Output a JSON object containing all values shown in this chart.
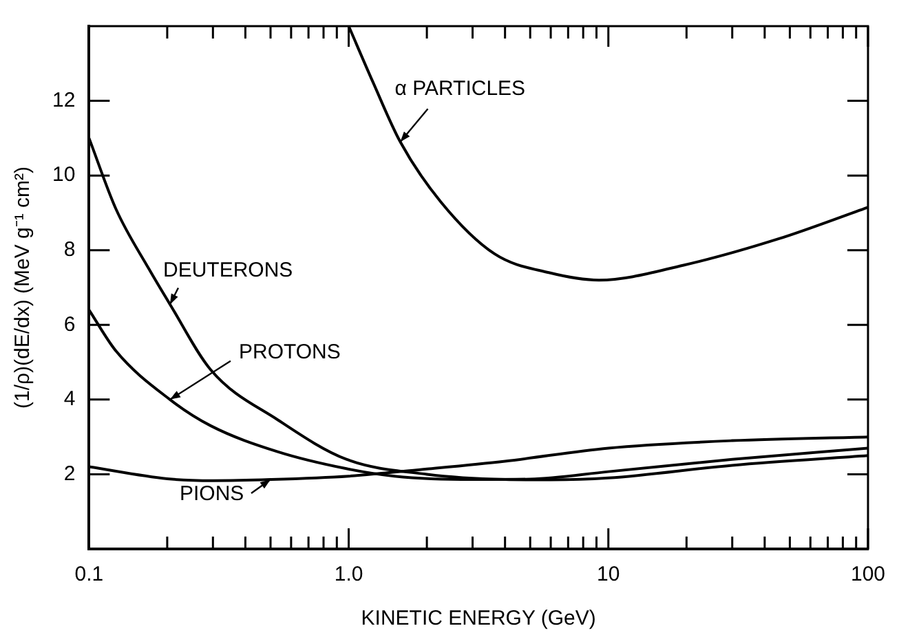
{
  "chart_data": {
    "type": "line",
    "xlabel": "KINETIC ENERGY (GeV)",
    "ylabel": "(1/ρ)(dE/dx) (MeV g⁻¹ cm²)",
    "log": "x",
    "xlim": [
      0.1,
      100
    ],
    "ylim": [
      0,
      14
    ],
    "xticks": [
      0.1,
      {
        "value": 0.2,
        "label": null
      },
      {
        "value": 0.3,
        "label": null
      },
      {
        "value": 0.4,
        "label": null
      },
      {
        "value": 0.5,
        "label": null
      },
      {
        "value": 0.6,
        "label": null
      },
      {
        "value": 0.7,
        "label": null
      },
      {
        "value": 0.8,
        "label": null
      },
      {
        "value": 0.9,
        "label": null
      },
      {
        "value": 1,
        "label": "1.0"
      },
      {
        "value": 2,
        "label": null
      },
      {
        "value": 3,
        "label": null
      },
      {
        "value": 4,
        "label": null
      },
      {
        "value": 5,
        "label": null
      },
      {
        "value": 6,
        "label": null
      },
      {
        "value": 7,
        "label": null
      },
      {
        "value": 8,
        "label": null
      },
      {
        "value": 9,
        "label": null
      },
      10,
      {
        "value": 20,
        "label": null
      },
      {
        "value": 30,
        "label": null
      },
      {
        "value": 40,
        "label": null
      },
      {
        "value": 50,
        "label": null
      },
      {
        "value": 60,
        "label": null
      },
      {
        "value": 70,
        "label": null
      },
      {
        "value": 80,
        "label": null
      },
      {
        "value": 90,
        "label": null
      },
      100
    ],
    "yticks": [
      2,
      4,
      6,
      8,
      10,
      12
    ],
    "grid": false,
    "legend": false,
    "marker": "none",
    "line_style": "solid",
    "series": [
      {
        "color": "#000000",
        "x": [
          1.0,
          1.24,
          1.58,
          2.26,
          3.65,
          5.9,
          9.2,
          19.5,
          45,
          100
        ],
        "values": [
          14.0,
          12.5,
          10.9,
          9.3,
          7.9,
          7.4,
          7.2,
          7.6,
          8.3,
          9.15
        ]
      },
      {
        "color": "#000000",
        "x": [
          0.1,
          0.127,
          0.17,
          0.205,
          0.294,
          0.535,
          0.98,
          2,
          4,
          6,
          10,
          30,
          100
        ],
        "values": [
          11.0,
          9.1,
          7.5,
          6.55,
          4.8,
          3.45,
          2.4,
          2.0,
          1.86,
          1.85,
          1.9,
          2.24,
          2.5
        ]
      },
      {
        "color": "#000000",
        "x": [
          0.1,
          0.127,
          0.205,
          0.294,
          0.535,
          0.98,
          1.5,
          3,
          5,
          10,
          30,
          100
        ],
        "values": [
          6.4,
          5.3,
          4.0,
          3.3,
          2.6,
          2.15,
          1.95,
          1.86,
          1.87,
          2.07,
          2.4,
          2.7
        ]
      },
      {
        "color": "#000000",
        "x": [
          0.1,
          0.2,
          0.3,
          0.5,
          1.0,
          2,
          4,
          10,
          30,
          100
        ],
        "values": [
          2.2,
          1.88,
          1.83,
          1.86,
          1.95,
          2.14,
          2.35,
          2.7,
          2.9,
          3.0
        ]
      }
    ],
    "annotations": [
      {
        "text": "α PARTICLES",
        "x": 1.58,
        "y": 10.9
      },
      {
        "text": "DEUTERONS",
        "x": 0.205,
        "y": 6.55
      },
      {
        "text": "PROTONS",
        "x": 0.205,
        "y": 4.0
      },
      {
        "text": "PIONS",
        "x": 0.5,
        "y": 1.86
      }
    ]
  }
}
